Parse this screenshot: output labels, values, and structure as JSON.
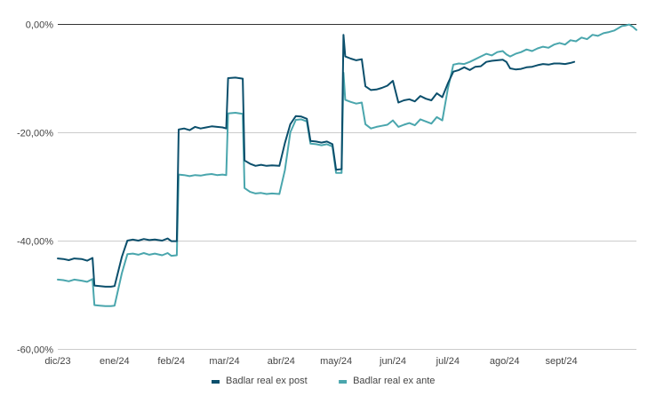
{
  "chart_data": {
    "type": "line",
    "title": "",
    "xlabel": "",
    "ylabel": "",
    "ylim": [
      -0.6,
      0.0
    ],
    "y_ticks": [
      {
        "value": 0.0,
        "label": "0,00%"
      },
      {
        "value": -0.2,
        "label": "-20,00%"
      },
      {
        "value": -0.4,
        "label": "-40,00%"
      },
      {
        "value": -0.6,
        "label": "-60,00%"
      }
    ],
    "x_range": [
      "2023-12-01",
      "2024-10-12"
    ],
    "x_ticks": [
      {
        "date": "2023-12-01",
        "label": "dic/23"
      },
      {
        "date": "2024-01-01",
        "label": "ene/24"
      },
      {
        "date": "2024-02-01",
        "label": "feb/24"
      },
      {
        "date": "2024-03-01",
        "label": "mar/24"
      },
      {
        "date": "2024-04-01",
        "label": "abr/24"
      },
      {
        "date": "2024-05-01",
        "label": "may/24"
      },
      {
        "date": "2024-06-01",
        "label": "jun/24"
      },
      {
        "date": "2024-07-01",
        "label": "jul/24"
      },
      {
        "date": "2024-08-01",
        "label": "ago/24"
      },
      {
        "date": "2024-09-01",
        "label": "sept/24"
      }
    ],
    "grid": "horizontal",
    "legend_position": "bottom",
    "series": [
      {
        "name": "Badlar real ex post",
        "color": "#0b4f6c",
        "points": [
          [
            "2023-12-01",
            -0.433
          ],
          [
            "2023-12-04",
            -0.434
          ],
          [
            "2023-12-07",
            -0.436
          ],
          [
            "2023-12-10",
            -0.433
          ],
          [
            "2023-12-14",
            -0.434
          ],
          [
            "2023-12-17",
            -0.437
          ],
          [
            "2023-12-20",
            -0.432
          ],
          [
            "2023-12-21",
            -0.483
          ],
          [
            "2023-12-24",
            -0.484
          ],
          [
            "2023-12-27",
            -0.485
          ],
          [
            "2023-12-30",
            -0.485
          ],
          [
            "2024-01-01",
            -0.484
          ],
          [
            "2024-01-05",
            -0.43
          ],
          [
            "2024-01-08",
            -0.4
          ],
          [
            "2024-01-11",
            -0.398
          ],
          [
            "2024-01-14",
            -0.4
          ],
          [
            "2024-01-17",
            -0.397
          ],
          [
            "2024-01-20",
            -0.399
          ],
          [
            "2024-01-23",
            -0.398
          ],
          [
            "2024-01-27",
            -0.4
          ],
          [
            "2024-01-30",
            -0.396
          ],
          [
            "2024-02-01",
            -0.401
          ],
          [
            "2024-02-04",
            -0.401
          ],
          [
            "2024-02-05",
            -0.195
          ],
          [
            "2024-02-08",
            -0.193
          ],
          [
            "2024-02-11",
            -0.196
          ],
          [
            "2024-02-14",
            -0.19
          ],
          [
            "2024-02-17",
            -0.193
          ],
          [
            "2024-02-20",
            -0.191
          ],
          [
            "2024-02-23",
            -0.189
          ],
          [
            "2024-02-26",
            -0.19
          ],
          [
            "2024-02-29",
            -0.191
          ],
          [
            "2024-03-02",
            -0.193
          ],
          [
            "2024-03-03",
            -0.1
          ],
          [
            "2024-03-07",
            -0.099
          ],
          [
            "2024-03-11",
            -0.101
          ],
          [
            "2024-03-12",
            -0.252
          ],
          [
            "2024-03-15",
            -0.258
          ],
          [
            "2024-03-18",
            -0.262
          ],
          [
            "2024-03-21",
            -0.26
          ],
          [
            "2024-03-24",
            -0.262
          ],
          [
            "2024-03-27",
            -0.261
          ],
          [
            "2024-03-31",
            -0.262
          ],
          [
            "2024-04-03",
            -0.22
          ],
          [
            "2024-04-06",
            -0.185
          ],
          [
            "2024-04-09",
            -0.17
          ],
          [
            "2024-04-12",
            -0.171
          ],
          [
            "2024-04-15",
            -0.175
          ],
          [
            "2024-04-17",
            -0.216
          ],
          [
            "2024-04-20",
            -0.217
          ],
          [
            "2024-04-23",
            -0.219
          ],
          [
            "2024-04-26",
            -0.217
          ],
          [
            "2024-04-29",
            -0.222
          ],
          [
            "2024-05-01",
            -0.269
          ],
          [
            "2024-05-04",
            -0.268
          ],
          [
            "2024-05-05",
            -0.02
          ],
          [
            "2024-05-06",
            -0.06
          ],
          [
            "2024-05-09",
            -0.064
          ],
          [
            "2024-05-12",
            -0.067
          ],
          [
            "2024-05-15",
            -0.065
          ],
          [
            "2024-05-17",
            -0.115
          ],
          [
            "2024-05-20",
            -0.122
          ],
          [
            "2024-05-23",
            -0.121
          ],
          [
            "2024-05-26",
            -0.118
          ],
          [
            "2024-05-29",
            -0.114
          ],
          [
            "2024-06-01",
            -0.105
          ],
          [
            "2024-06-04",
            -0.145
          ],
          [
            "2024-06-07",
            -0.141
          ],
          [
            "2024-06-10",
            -0.139
          ],
          [
            "2024-06-13",
            -0.143
          ],
          [
            "2024-06-16",
            -0.133
          ],
          [
            "2024-06-19",
            -0.138
          ],
          [
            "2024-06-22",
            -0.141
          ],
          [
            "2024-06-25",
            -0.128
          ],
          [
            "2024-06-28",
            -0.135
          ],
          [
            "2024-07-01",
            -0.11
          ],
          [
            "2024-07-04",
            -0.088
          ],
          [
            "2024-07-07",
            -0.085
          ],
          [
            "2024-07-10",
            -0.08
          ],
          [
            "2024-07-13",
            -0.085
          ],
          [
            "2024-07-16",
            -0.079
          ],
          [
            "2024-07-19",
            -0.078
          ],
          [
            "2024-07-22",
            -0.07
          ],
          [
            "2024-07-25",
            -0.068
          ],
          [
            "2024-07-28",
            -0.067
          ],
          [
            "2024-07-31",
            -0.066
          ],
          [
            "2024-08-02",
            -0.07
          ],
          [
            "2024-08-04",
            -0.082
          ],
          [
            "2024-08-07",
            -0.084
          ],
          [
            "2024-08-10",
            -0.083
          ],
          [
            "2024-08-13",
            -0.08
          ],
          [
            "2024-08-16",
            -0.079
          ],
          [
            "2024-08-19",
            -0.076
          ],
          [
            "2024-08-22",
            -0.074
          ],
          [
            "2024-08-25",
            -0.075
          ],
          [
            "2024-08-28",
            -0.073
          ],
          [
            "2024-08-31",
            -0.073
          ],
          [
            "2024-09-03",
            -0.074
          ],
          [
            "2024-09-06",
            -0.072
          ],
          [
            "2024-09-08",
            -0.07
          ]
        ]
      },
      {
        "name": "Badlar real ex ante",
        "color": "#4aa6ad",
        "points": [
          [
            "2023-12-01",
            -0.472
          ],
          [
            "2023-12-04",
            -0.473
          ],
          [
            "2023-12-07",
            -0.475
          ],
          [
            "2023-12-10",
            -0.472
          ],
          [
            "2023-12-14",
            -0.474
          ],
          [
            "2023-12-17",
            -0.476
          ],
          [
            "2023-12-20",
            -0.471
          ],
          [
            "2023-12-21",
            -0.519
          ],
          [
            "2023-12-24",
            -0.52
          ],
          [
            "2023-12-27",
            -0.521
          ],
          [
            "2023-12-30",
            -0.521
          ],
          [
            "2024-01-01",
            -0.52
          ],
          [
            "2024-01-05",
            -0.46
          ],
          [
            "2024-01-08",
            -0.425
          ],
          [
            "2024-01-11",
            -0.424
          ],
          [
            "2024-01-14",
            -0.426
          ],
          [
            "2024-01-17",
            -0.423
          ],
          [
            "2024-01-20",
            -0.426
          ],
          [
            "2024-01-23",
            -0.424
          ],
          [
            "2024-01-27",
            -0.427
          ],
          [
            "2024-01-30",
            -0.423
          ],
          [
            "2024-02-01",
            -0.428
          ],
          [
            "2024-02-04",
            -0.427
          ],
          [
            "2024-02-05",
            -0.278
          ],
          [
            "2024-02-08",
            -0.279
          ],
          [
            "2024-02-11",
            -0.281
          ],
          [
            "2024-02-14",
            -0.279
          ],
          [
            "2024-02-17",
            -0.28
          ],
          [
            "2024-02-20",
            -0.278
          ],
          [
            "2024-02-23",
            -0.277
          ],
          [
            "2024-02-26",
            -0.279
          ],
          [
            "2024-02-29",
            -0.278
          ],
          [
            "2024-03-02",
            -0.279
          ],
          [
            "2024-03-03",
            -0.165
          ],
          [
            "2024-03-07",
            -0.164
          ],
          [
            "2024-03-11",
            -0.166
          ],
          [
            "2024-03-12",
            -0.303
          ],
          [
            "2024-03-15",
            -0.31
          ],
          [
            "2024-03-18",
            -0.313
          ],
          [
            "2024-03-21",
            -0.312
          ],
          [
            "2024-03-24",
            -0.314
          ],
          [
            "2024-03-27",
            -0.313
          ],
          [
            "2024-03-31",
            -0.314
          ],
          [
            "2024-04-03",
            -0.27
          ],
          [
            "2024-04-06",
            -0.2
          ],
          [
            "2024-04-09",
            -0.177
          ],
          [
            "2024-04-12",
            -0.176
          ],
          [
            "2024-04-15",
            -0.18
          ],
          [
            "2024-04-17",
            -0.221
          ],
          [
            "2024-04-20",
            -0.222
          ],
          [
            "2024-04-23",
            -0.224
          ],
          [
            "2024-04-26",
            -0.222
          ],
          [
            "2024-04-29",
            -0.226
          ],
          [
            "2024-05-01",
            -0.275
          ],
          [
            "2024-05-04",
            -0.275
          ],
          [
            "2024-05-05",
            -0.09
          ],
          [
            "2024-05-06",
            -0.14
          ],
          [
            "2024-05-09",
            -0.144
          ],
          [
            "2024-05-12",
            -0.147
          ],
          [
            "2024-05-15",
            -0.145
          ],
          [
            "2024-05-17",
            -0.185
          ],
          [
            "2024-05-20",
            -0.193
          ],
          [
            "2024-05-23",
            -0.19
          ],
          [
            "2024-05-26",
            -0.188
          ],
          [
            "2024-05-29",
            -0.186
          ],
          [
            "2024-06-01",
            -0.178
          ],
          [
            "2024-06-04",
            -0.19
          ],
          [
            "2024-06-07",
            -0.186
          ],
          [
            "2024-06-10",
            -0.183
          ],
          [
            "2024-06-13",
            -0.187
          ],
          [
            "2024-06-16",
            -0.176
          ],
          [
            "2024-06-19",
            -0.18
          ],
          [
            "2024-06-22",
            -0.184
          ],
          [
            "2024-06-25",
            -0.172
          ],
          [
            "2024-06-28",
            -0.178
          ],
          [
            "2024-07-01",
            -0.12
          ],
          [
            "2024-07-04",
            -0.075
          ],
          [
            "2024-07-07",
            -0.073
          ],
          [
            "2024-07-10",
            -0.074
          ],
          [
            "2024-07-13",
            -0.07
          ],
          [
            "2024-07-16",
            -0.065
          ],
          [
            "2024-07-19",
            -0.06
          ],
          [
            "2024-07-22",
            -0.055
          ],
          [
            "2024-07-25",
            -0.058
          ],
          [
            "2024-07-28",
            -0.052
          ],
          [
            "2024-07-31",
            -0.05
          ],
          [
            "2024-08-02",
            -0.056
          ],
          [
            "2024-08-04",
            -0.06
          ],
          [
            "2024-08-07",
            -0.055
          ],
          [
            "2024-08-10",
            -0.052
          ],
          [
            "2024-08-13",
            -0.047
          ],
          [
            "2024-08-16",
            -0.05
          ],
          [
            "2024-08-19",
            -0.045
          ],
          [
            "2024-08-22",
            -0.042
          ],
          [
            "2024-08-25",
            -0.044
          ],
          [
            "2024-08-28",
            -0.038
          ],
          [
            "2024-08-31",
            -0.035
          ],
          [
            "2024-09-03",
            -0.038
          ],
          [
            "2024-09-06",
            -0.03
          ],
          [
            "2024-09-09",
            -0.032
          ],
          [
            "2024-09-12",
            -0.025
          ],
          [
            "2024-09-15",
            -0.028
          ],
          [
            "2024-09-18",
            -0.02
          ],
          [
            "2024-09-21",
            -0.022
          ],
          [
            "2024-09-24",
            -0.017
          ],
          [
            "2024-09-27",
            -0.015
          ],
          [
            "2024-09-30",
            -0.012
          ],
          [
            "2024-10-02",
            -0.008
          ],
          [
            "2024-10-04",
            -0.004
          ],
          [
            "2024-10-06",
            -0.003
          ],
          [
            "2024-10-08",
            -0.001
          ],
          [
            "2024-10-10",
            -0.005
          ],
          [
            "2024-10-12",
            -0.011
          ]
        ]
      }
    ]
  }
}
